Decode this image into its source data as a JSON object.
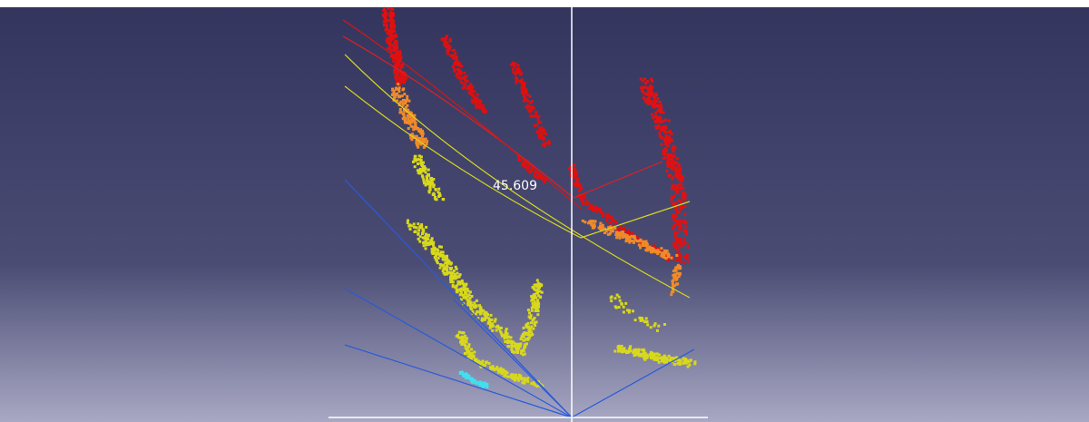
{
  "viewport": {
    "measurement_label": "45.609"
  }
}
